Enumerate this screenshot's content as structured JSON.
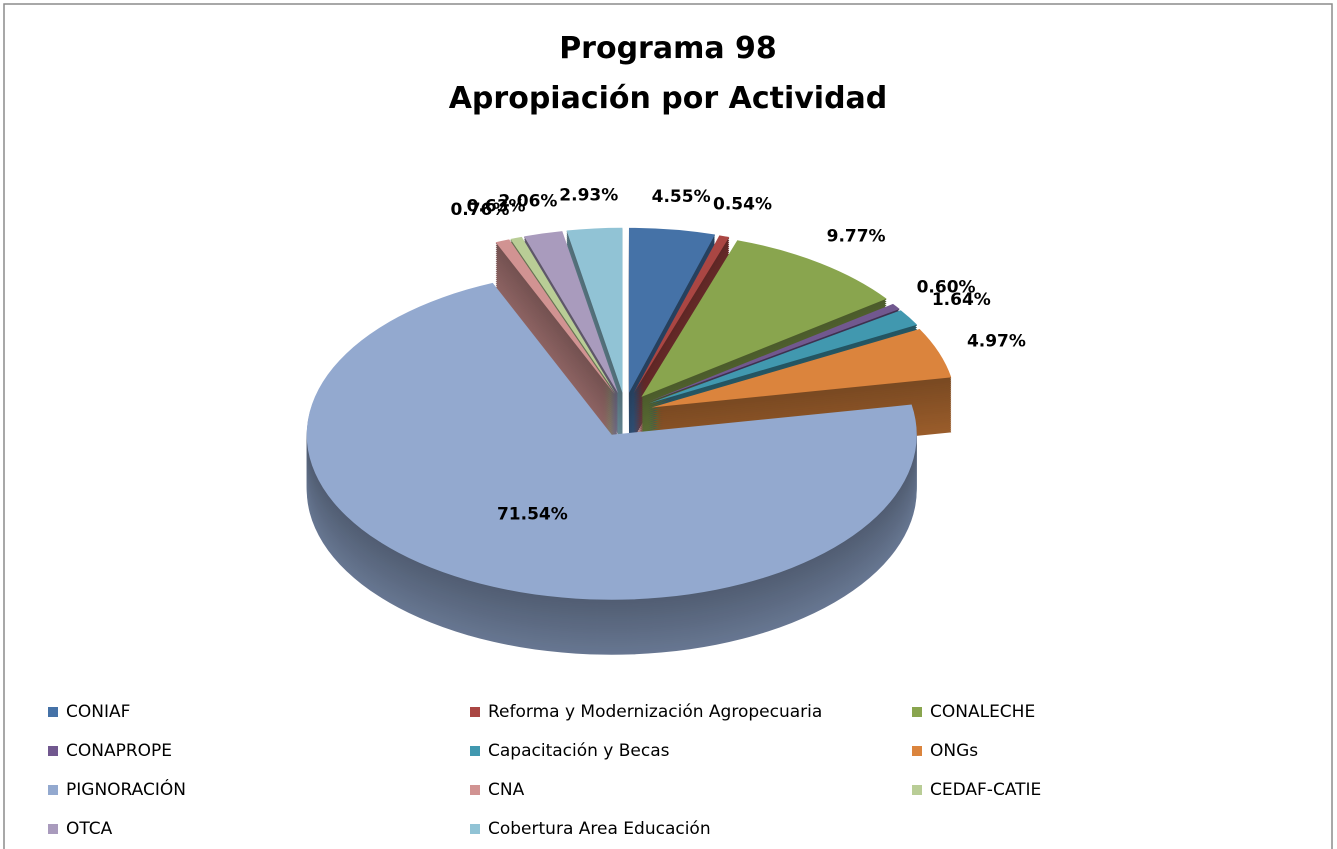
{
  "chart_data": {
    "type": "pie",
    "title": [
      "Programa 98",
      "Apropiación por Actividad"
    ],
    "categories": [
      "CONIAF",
      "Reforma y Modernización Agropecuaria",
      "CONALECHE",
      "CONAPROPE",
      "Capacitación y Becas",
      "ONGs",
      "PIGNORACIÓN",
      "CNA",
      "CEDAF-CATIE",
      "OTCA",
      "Cobertura Area Educación"
    ],
    "values": [
      4.55,
      0.54,
      9.77,
      0.6,
      1.64,
      4.97,
      71.54,
      0.76,
      0.63,
      2.06,
      2.93
    ],
    "value_labels": [
      "4.55%",
      "0.54%",
      "9.77%",
      "0.60%",
      "1.64%",
      "4.97%",
      "71.54%",
      "0.76%",
      "0.63%",
      "2.06%",
      "2.93%"
    ],
    "colors": [
      "#4572a7",
      "#aa4643",
      "#89a54e",
      "#71588f",
      "#4198af",
      "#db843d",
      "#93a9cf",
      "#d19392",
      "#b9cd96",
      "#a99bbd",
      "#91c3d5"
    ],
    "legend": "bottom"
  }
}
